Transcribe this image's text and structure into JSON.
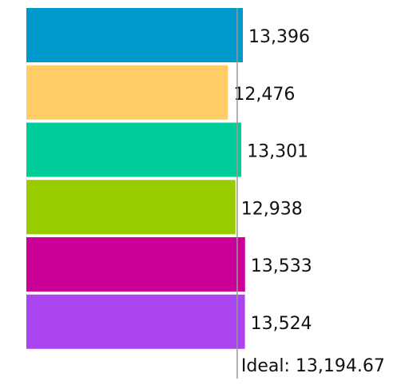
{
  "chart_data": {
    "type": "bar",
    "orientation": "horizontal",
    "title": "",
    "xlabel": "",
    "ylabel": "",
    "grid": false,
    "series": [
      {
        "values": [
          13396,
          12476,
          13301,
          12938,
          13533,
          13524
        ],
        "colors": [
          "#0099cc",
          "#ffcc66",
          "#00cc99",
          "#99cc00",
          "#cc0099",
          "#aa44ee"
        ],
        "labels": [
          "13,396",
          "12,476",
          "13,301",
          "12,938",
          "13,533",
          "13,524"
        ]
      }
    ],
    "reference_line": {
      "value": 13194.67,
      "label": "Ideal: 13,194.67",
      "color": "#999999"
    }
  }
}
